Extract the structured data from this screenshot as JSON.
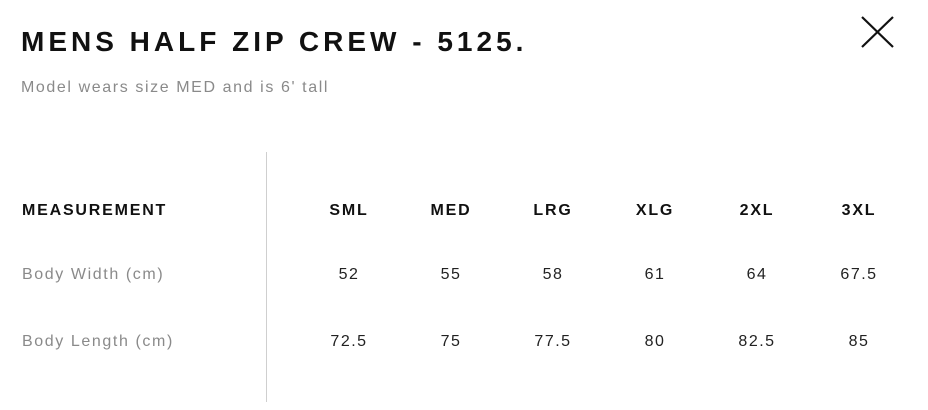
{
  "title": "MENS HALF ZIP CREW - 5125.",
  "subtitle": "Model wears size MED and is 6' tall",
  "close_icon": "close-icon",
  "table": {
    "header_label": "MEASUREMENT",
    "sizes": [
      "SML",
      "MED",
      "LRG",
      "XLG",
      "2XL",
      "3XL"
    ],
    "rows": [
      {
        "label": "Body Width (cm)",
        "values": [
          "52",
          "55",
          "58",
          "61",
          "64",
          "67.5"
        ]
      },
      {
        "label": "Body Length (cm)",
        "values": [
          "72.5",
          "75",
          "77.5",
          "80",
          "82.5",
          "85"
        ]
      }
    ]
  }
}
